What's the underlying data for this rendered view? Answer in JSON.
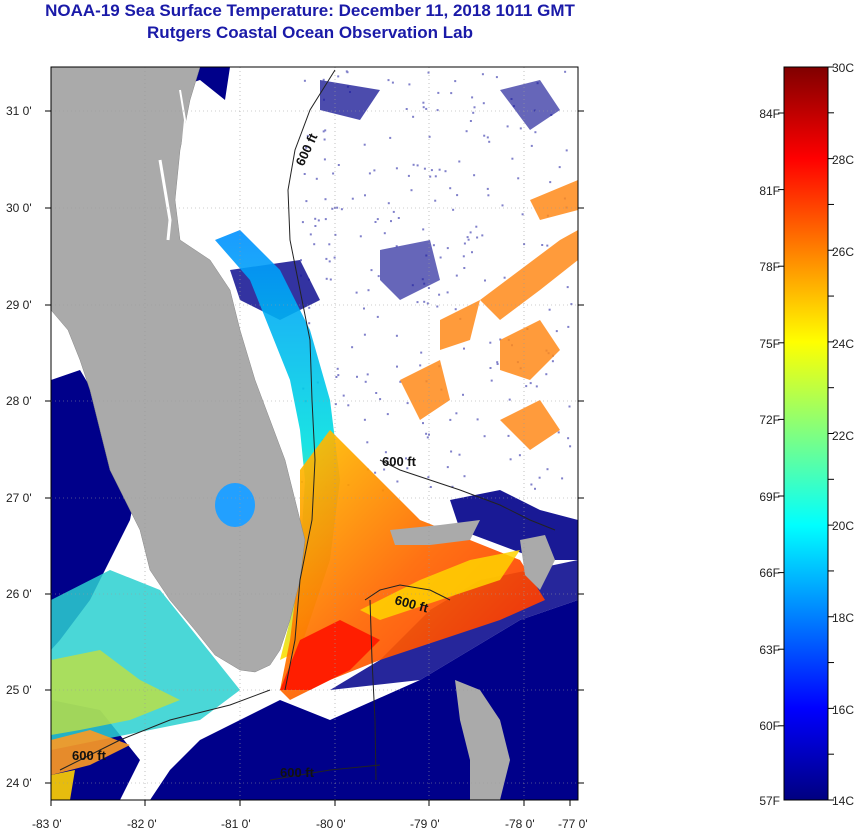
{
  "header": {
    "title": "NOAA-19 Sea Surface Temperature:  December 11, 2018 1011 GMT",
    "subtitle": "Rutgers Coastal Ocean Observation Lab"
  },
  "axes": {
    "lon_labels": [
      "-83 0'",
      "-82 0'",
      "-81 0'",
      "-80 0'",
      "-79 0'",
      "-78 0'",
      "-77 0'"
    ],
    "lat_labels": [
      "31 0'",
      "30 0'",
      "29 0'",
      "28 0'",
      "27 0'",
      "26 0'",
      "25 0'",
      "24 0'"
    ]
  },
  "contours": {
    "label": "600 ft"
  },
  "colorbar": {
    "celsius": [
      "30C",
      "28C",
      "26C",
      "24C",
      "22C",
      "20C",
      "18C",
      "16C",
      "14C"
    ],
    "fahrenheit": [
      "84F",
      "81F",
      "78F",
      "75F",
      "72F",
      "69F",
      "66F",
      "63F",
      "60F",
      "57F"
    ],
    "colors": [
      "#000080",
      "#0000ff",
      "#0080ff",
      "#00ffff",
      "#80ff80",
      "#ffff00",
      "#ff8000",
      "#ff0000",
      "#800000"
    ]
  },
  "colors": {
    "land": "#aaaaaa",
    "cold_water": "#00008a",
    "title": "#1a1aa8"
  }
}
